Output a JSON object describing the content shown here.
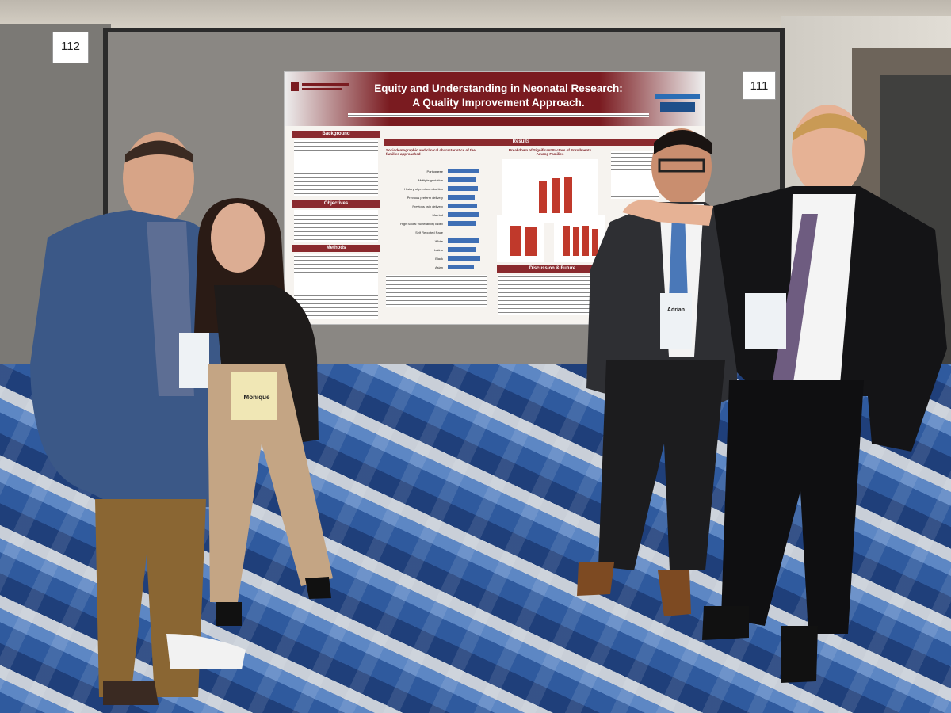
{
  "booth_numbers": {
    "left": "112",
    "right": "111"
  },
  "poster": {
    "title_line1": "Equity and Understanding in Neonatal Research:",
    "title_line2": "A Quality Improvement Approach.",
    "sections": {
      "background": "Background",
      "objectives": "Objectives",
      "methods": "Methods",
      "results": "Results",
      "discussion": "Discussion & Future"
    },
    "results_subtitle_left": "Sociodemographic and clinical characteristics of the families approached",
    "results_subtitle_right": "Breakdown of Significant Factors of Enrollments Among Families",
    "row_labels": [
      "Portuguese",
      "Multiple gestation",
      "History of previous abortion",
      "Previous preterm delivery",
      "Previous twin delivery",
      "Married",
      "High Social Vulnerability Index",
      "Self Reported Race",
      "White",
      "Latino",
      "Black",
      "Asian"
    ]
  },
  "badge_text": {
    "badge1": "Monique",
    "badge2": "Adrian"
  },
  "colors": {
    "poster_header": "#7a1b20",
    "board_frame": "#2b2b2b",
    "carpet_blue": "#2f5a9e",
    "bar_red": "#c0392b",
    "bar_blue": "#3f6fb5"
  }
}
